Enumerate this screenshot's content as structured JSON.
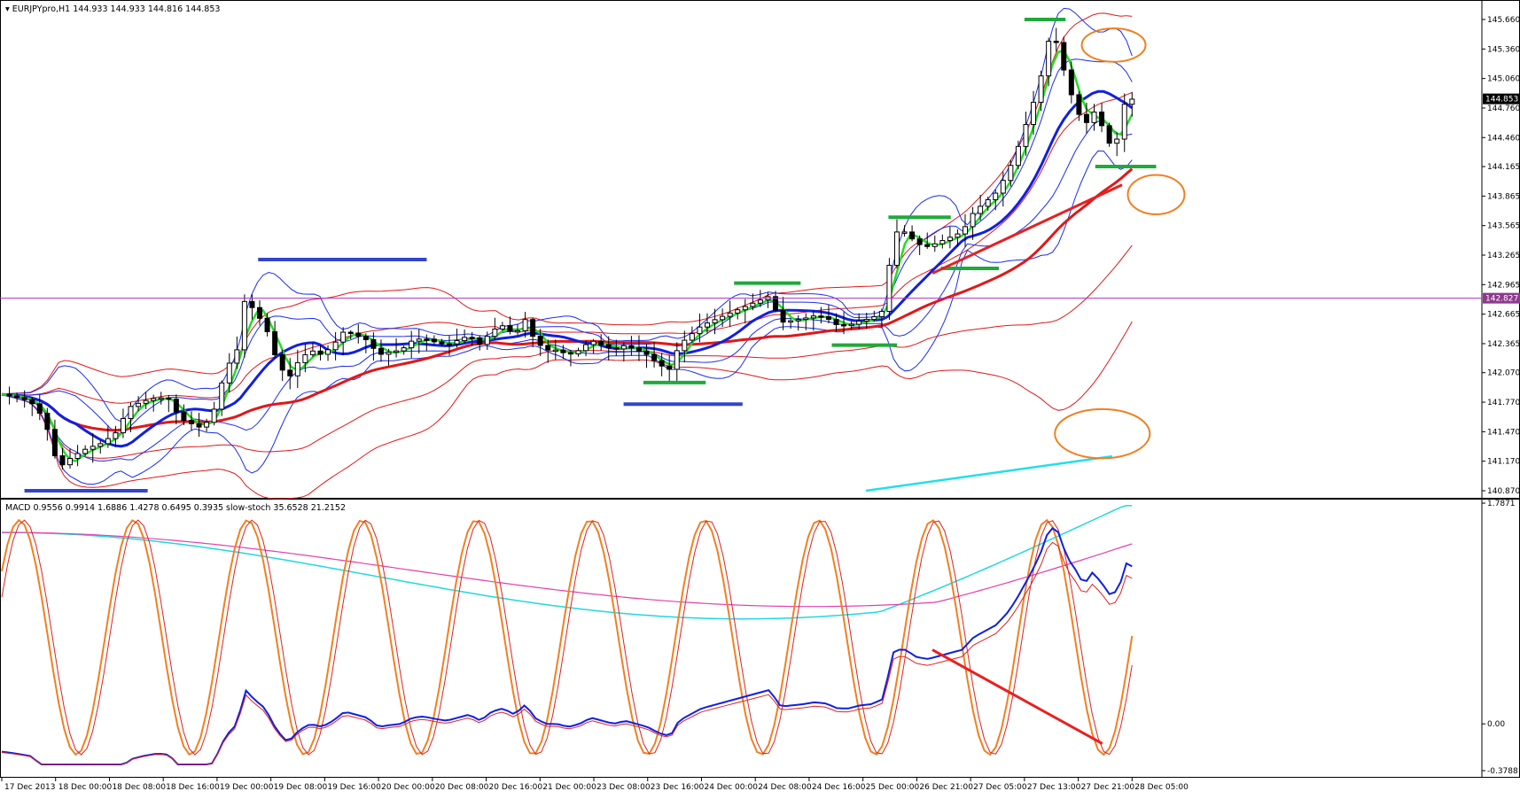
{
  "chart_data": [
    {
      "panel": "price",
      "type": "candlestick",
      "symbol_header": "EURJPYpro,H1",
      "ohlc_header": "144.933 144.933 144.816 144.853",
      "ylim": [
        140.87,
        145.66
      ],
      "y_ticks": [
        "145.660",
        "145.360",
        "145.060",
        "144.760",
        "144.460",
        "144.165",
        "143.865",
        "143.565",
        "143.265",
        "142.965",
        "142.665",
        "142.365",
        "142.070",
        "141.770",
        "141.470",
        "141.170",
        "140.870"
      ],
      "current_price": "144.853",
      "horizontal_line_label": "142.827",
      "horizontal_line": 142.827,
      "colors": {
        "up_candle": "#ffffff",
        "down_candle": "#000000",
        "green_ma": "#22dd22",
        "blue_ma": "#1020e0",
        "red_ma": "#e01818",
        "bands": "#e01818",
        "inner_bands": "#1a2cf0",
        "cyan_line": "#20e0e8",
        "hline": "#aa33cc",
        "marker_green": "#1faa3a",
        "marker_blue": "#3344cc",
        "ellipse": "#f08020",
        "trendline": "#e82020",
        "price_label_bg": "#000000",
        "hline_label_bg": "#8e3a8e"
      },
      "annotations": [
        {
          "kind": "green_dash",
          "x0": 0.722,
          "x1": 0.751,
          "y": 145.66
        },
        {
          "kind": "green_dash",
          "x0": 0.772,
          "x1": 0.815,
          "y": 144.165
        },
        {
          "kind": "green_dash",
          "x0": 0.626,
          "x1": 0.67,
          "y": 143.65
        },
        {
          "kind": "green_dash",
          "x0": 0.663,
          "x1": 0.704,
          "y": 143.13
        },
        {
          "kind": "green_dash",
          "x0": 0.586,
          "x1": 0.632,
          "y": 142.35
        },
        {
          "kind": "green_dash",
          "x0": 0.453,
          "x1": 0.497,
          "y": 141.97
        },
        {
          "kind": "green_dash",
          "x0": 0.517,
          "x1": 0.564,
          "y": 142.98
        },
        {
          "kind": "blue_dash",
          "x0": 0.181,
          "x1": 0.3,
          "y": 143.22
        },
        {
          "kind": "blue_dash",
          "x0": 0.439,
          "x1": 0.523,
          "y": 141.75
        },
        {
          "kind": "blue_dash",
          "x0": 0.016,
          "x1": 0.103,
          "y": 140.87
        },
        {
          "kind": "ellipse",
          "x": 0.785,
          "y": 145.4,
          "rx": 0.0225,
          "ry": 0.17
        },
        {
          "kind": "ellipse",
          "x": 0.815,
          "y": 143.88,
          "rx": 0.02,
          "ry": 0.2
        },
        {
          "kind": "ellipse",
          "x": 0.777,
          "y": 141.45,
          "rx": 0.0335,
          "ry": 0.25
        },
        {
          "kind": "trendline",
          "x0": 0.657,
          "y0": 143.08,
          "x1": 0.791,
          "y1": 143.98
        }
      ]
    },
    {
      "panel": "indicator",
      "type": "line",
      "header": "MACD 0.9556 0.9914 1.6886 1.4278 0.6495 0.3935  slow-stoch 35.6528 21.2152",
      "ylim": [
        -0.3788,
        1.7871
      ],
      "y_ticks": [
        "1.7871",
        "0.00",
        "-0.3788"
      ],
      "annotations": [
        {
          "kind": "trendline",
          "x0": 0.657,
          "y0": 0.6,
          "x1": 0.777,
          "y1": -0.16
        }
      ]
    }
  ],
  "x_axis": {
    "labels": [
      "17 Dec 2013",
      "18 Dec 00:00",
      "18 Dec 08:00",
      "18 Dec 16:00",
      "19 Dec 00:00",
      "19 Dec 08:00",
      "19 Dec 16:00",
      "20 Dec 00:00",
      "20 Dec 08:00",
      "20 Dec 16:00",
      "21 Dec 00:00",
      "23 Dec 08:00",
      "23 Dec 16:00",
      "24 Dec 00:00",
      "24 Dec 08:00",
      "24 Dec 16:00",
      "25 Dec 00:00",
      "26 Dec 21:00",
      "27 Dec 05:00",
      "27 Dec 13:00",
      "27 Dec 21:00",
      "28 Dec 05:00"
    ],
    "positions": [
      0.0,
      0.038,
      0.076,
      0.114,
      0.152,
      0.19,
      0.228,
      0.266,
      0.304,
      0.342,
      0.38,
      0.418,
      0.456,
      0.494,
      0.532,
      0.57,
      0.608,
      0.646,
      0.684,
      0.722,
      0.76,
      0.798
    ]
  },
  "series_points": {
    "close_anchors": [
      [
        0.0,
        141.85
      ],
      [
        0.01,
        141.82
      ],
      [
        0.02,
        141.78
      ],
      [
        0.03,
        141.6
      ],
      [
        0.04,
        141.1
      ],
      [
        0.05,
        141.22
      ],
      [
        0.06,
        141.3
      ],
      [
        0.07,
        141.35
      ],
      [
        0.08,
        141.45
      ],
      [
        0.09,
        141.72
      ],
      [
        0.1,
        141.78
      ],
      [
        0.11,
        141.82
      ],
      [
        0.118,
        141.8
      ],
      [
        0.126,
        141.6
      ],
      [
        0.134,
        141.55
      ],
      [
        0.142,
        141.5
      ],
      [
        0.15,
        141.7
      ],
      [
        0.158,
        142.1
      ],
      [
        0.166,
        142.3
      ],
      [
        0.172,
        142.85
      ],
      [
        0.178,
        142.7
      ],
      [
        0.186,
        142.55
      ],
      [
        0.194,
        142.2
      ],
      [
        0.202,
        142.0
      ],
      [
        0.21,
        142.2
      ],
      [
        0.218,
        142.3
      ],
      [
        0.226,
        142.25
      ],
      [
        0.234,
        142.35
      ],
      [
        0.242,
        142.5
      ],
      [
        0.25,
        142.45
      ],
      [
        0.258,
        142.4
      ],
      [
        0.266,
        142.25
      ],
      [
        0.274,
        142.28
      ],
      [
        0.282,
        142.3
      ],
      [
        0.29,
        142.4
      ],
      [
        0.298,
        142.42
      ],
      [
        0.306,
        142.38
      ],
      [
        0.314,
        142.35
      ],
      [
        0.322,
        142.4
      ],
      [
        0.33,
        142.45
      ],
      [
        0.338,
        142.35
      ],
      [
        0.346,
        142.5
      ],
      [
        0.354,
        142.55
      ],
      [
        0.362,
        142.45
      ],
      [
        0.37,
        142.62
      ],
      [
        0.376,
        142.4
      ],
      [
        0.384,
        142.3
      ],
      [
        0.392,
        142.3
      ],
      [
        0.4,
        142.25
      ],
      [
        0.408,
        142.3
      ],
      [
        0.416,
        142.4
      ],
      [
        0.424,
        142.35
      ],
      [
        0.432,
        142.3
      ],
      [
        0.44,
        142.35
      ],
      [
        0.448,
        142.3
      ],
      [
        0.456,
        142.25
      ],
      [
        0.464,
        142.15
      ],
      [
        0.472,
        142.1
      ],
      [
        0.478,
        142.35
      ],
      [
        0.486,
        142.45
      ],
      [
        0.494,
        142.55
      ],
      [
        0.502,
        142.6
      ],
      [
        0.51,
        142.65
      ],
      [
        0.518,
        142.7
      ],
      [
        0.526,
        142.75
      ],
      [
        0.534,
        142.8
      ],
      [
        0.542,
        142.85
      ],
      [
        0.55,
        142.58
      ],
      [
        0.558,
        142.6
      ],
      [
        0.566,
        142.62
      ],
      [
        0.574,
        142.65
      ],
      [
        0.582,
        142.63
      ],
      [
        0.59,
        142.55
      ],
      [
        0.598,
        142.55
      ],
      [
        0.606,
        142.6
      ],
      [
        0.614,
        142.62
      ],
      [
        0.622,
        142.7
      ],
      [
        0.63,
        143.5
      ],
      [
        0.638,
        143.5
      ],
      [
        0.646,
        143.38
      ],
      [
        0.654,
        143.35
      ],
      [
        0.662,
        143.4
      ],
      [
        0.67,
        143.45
      ],
      [
        0.678,
        143.5
      ],
      [
        0.686,
        143.7
      ],
      [
        0.694,
        143.8
      ],
      [
        0.702,
        143.9
      ],
      [
        0.71,
        144.1
      ],
      [
        0.716,
        144.3
      ],
      [
        0.722,
        144.55
      ],
      [
        0.728,
        144.8
      ],
      [
        0.734,
        145.1
      ],
      [
        0.74,
        145.5
      ],
      [
        0.746,
        145.4
      ],
      [
        0.752,
        145.0
      ],
      [
        0.758,
        144.8
      ],
      [
        0.764,
        144.55
      ],
      [
        0.77,
        144.75
      ],
      [
        0.776,
        144.6
      ],
      [
        0.782,
        144.4
      ],
      [
        0.788,
        144.45
      ],
      [
        0.794,
        144.9
      ],
      [
        0.798,
        144.85
      ]
    ]
  }
}
